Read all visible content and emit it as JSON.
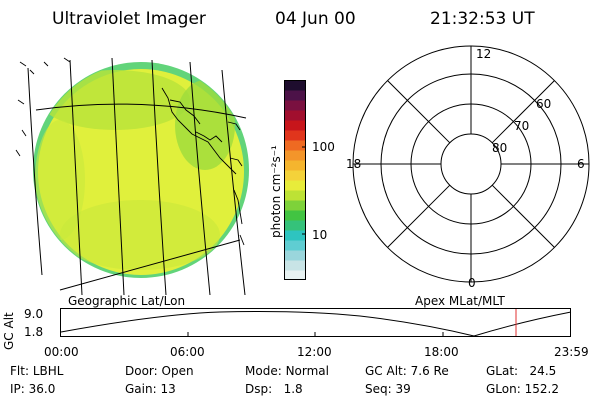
{
  "header": {
    "title": "Ultraviolet Imager",
    "date": "04 Jun 00",
    "time": "21:32:53 UT"
  },
  "colorbar": {
    "unit_label": "photon cm⁻²s⁻¹",
    "tick_100": "100",
    "tick_10": "10",
    "colors": [
      "#e8f2f2",
      "#c8e4e6",
      "#9ad6dc",
      "#5fcdd2",
      "#2ec4c0",
      "#35c27a",
      "#42c442",
      "#7ed23a",
      "#bde235",
      "#e8ec3a",
      "#f4d23a",
      "#f5b52e",
      "#f3952a",
      "#ef6a22",
      "#e0351c",
      "#c7151b",
      "#a10f2e",
      "#7a1040",
      "#4c1248",
      "#1e0d2e"
    ]
  },
  "map": {
    "label": "Geographic Lat/Lon",
    "disk_color": "#e0f03c",
    "edge_color": "#62d47a"
  },
  "polar": {
    "label": "Apex MLat/MLT",
    "mlt_labels": {
      "top": "12",
      "bottom": "0",
      "left": "18",
      "right": "6"
    },
    "lat_labels": [
      "60",
      "70",
      "80"
    ]
  },
  "timeline": {
    "axis_label": "GC Alt",
    "y_max": "9.0",
    "y_min": "1.8",
    "ticks": [
      "00:00",
      "06:00",
      "12:00",
      "18:00",
      "23:59"
    ],
    "marker_color": "#e03030"
  },
  "info": {
    "flt_label": "Flt:",
    "flt_value": "LBHL",
    "ip_label": "IP:",
    "ip_value": "36.0",
    "door_label": "Door:",
    "door_value": "Open",
    "gain_label": "Gain:",
    "gain_value": "13",
    "mode_label": "Mode:",
    "mode_value": "Normal",
    "dsp_label": "Dsp:",
    "dsp_value": "1.8",
    "gcalt_label": "GC Alt:",
    "gcalt_value": "7.6 Re",
    "seq_label": "Seq:",
    "seq_value": "39",
    "glat_label": "GLat:",
    "glat_value": "24.5",
    "glon_label": "GLon:",
    "glon_value": "152.2"
  }
}
